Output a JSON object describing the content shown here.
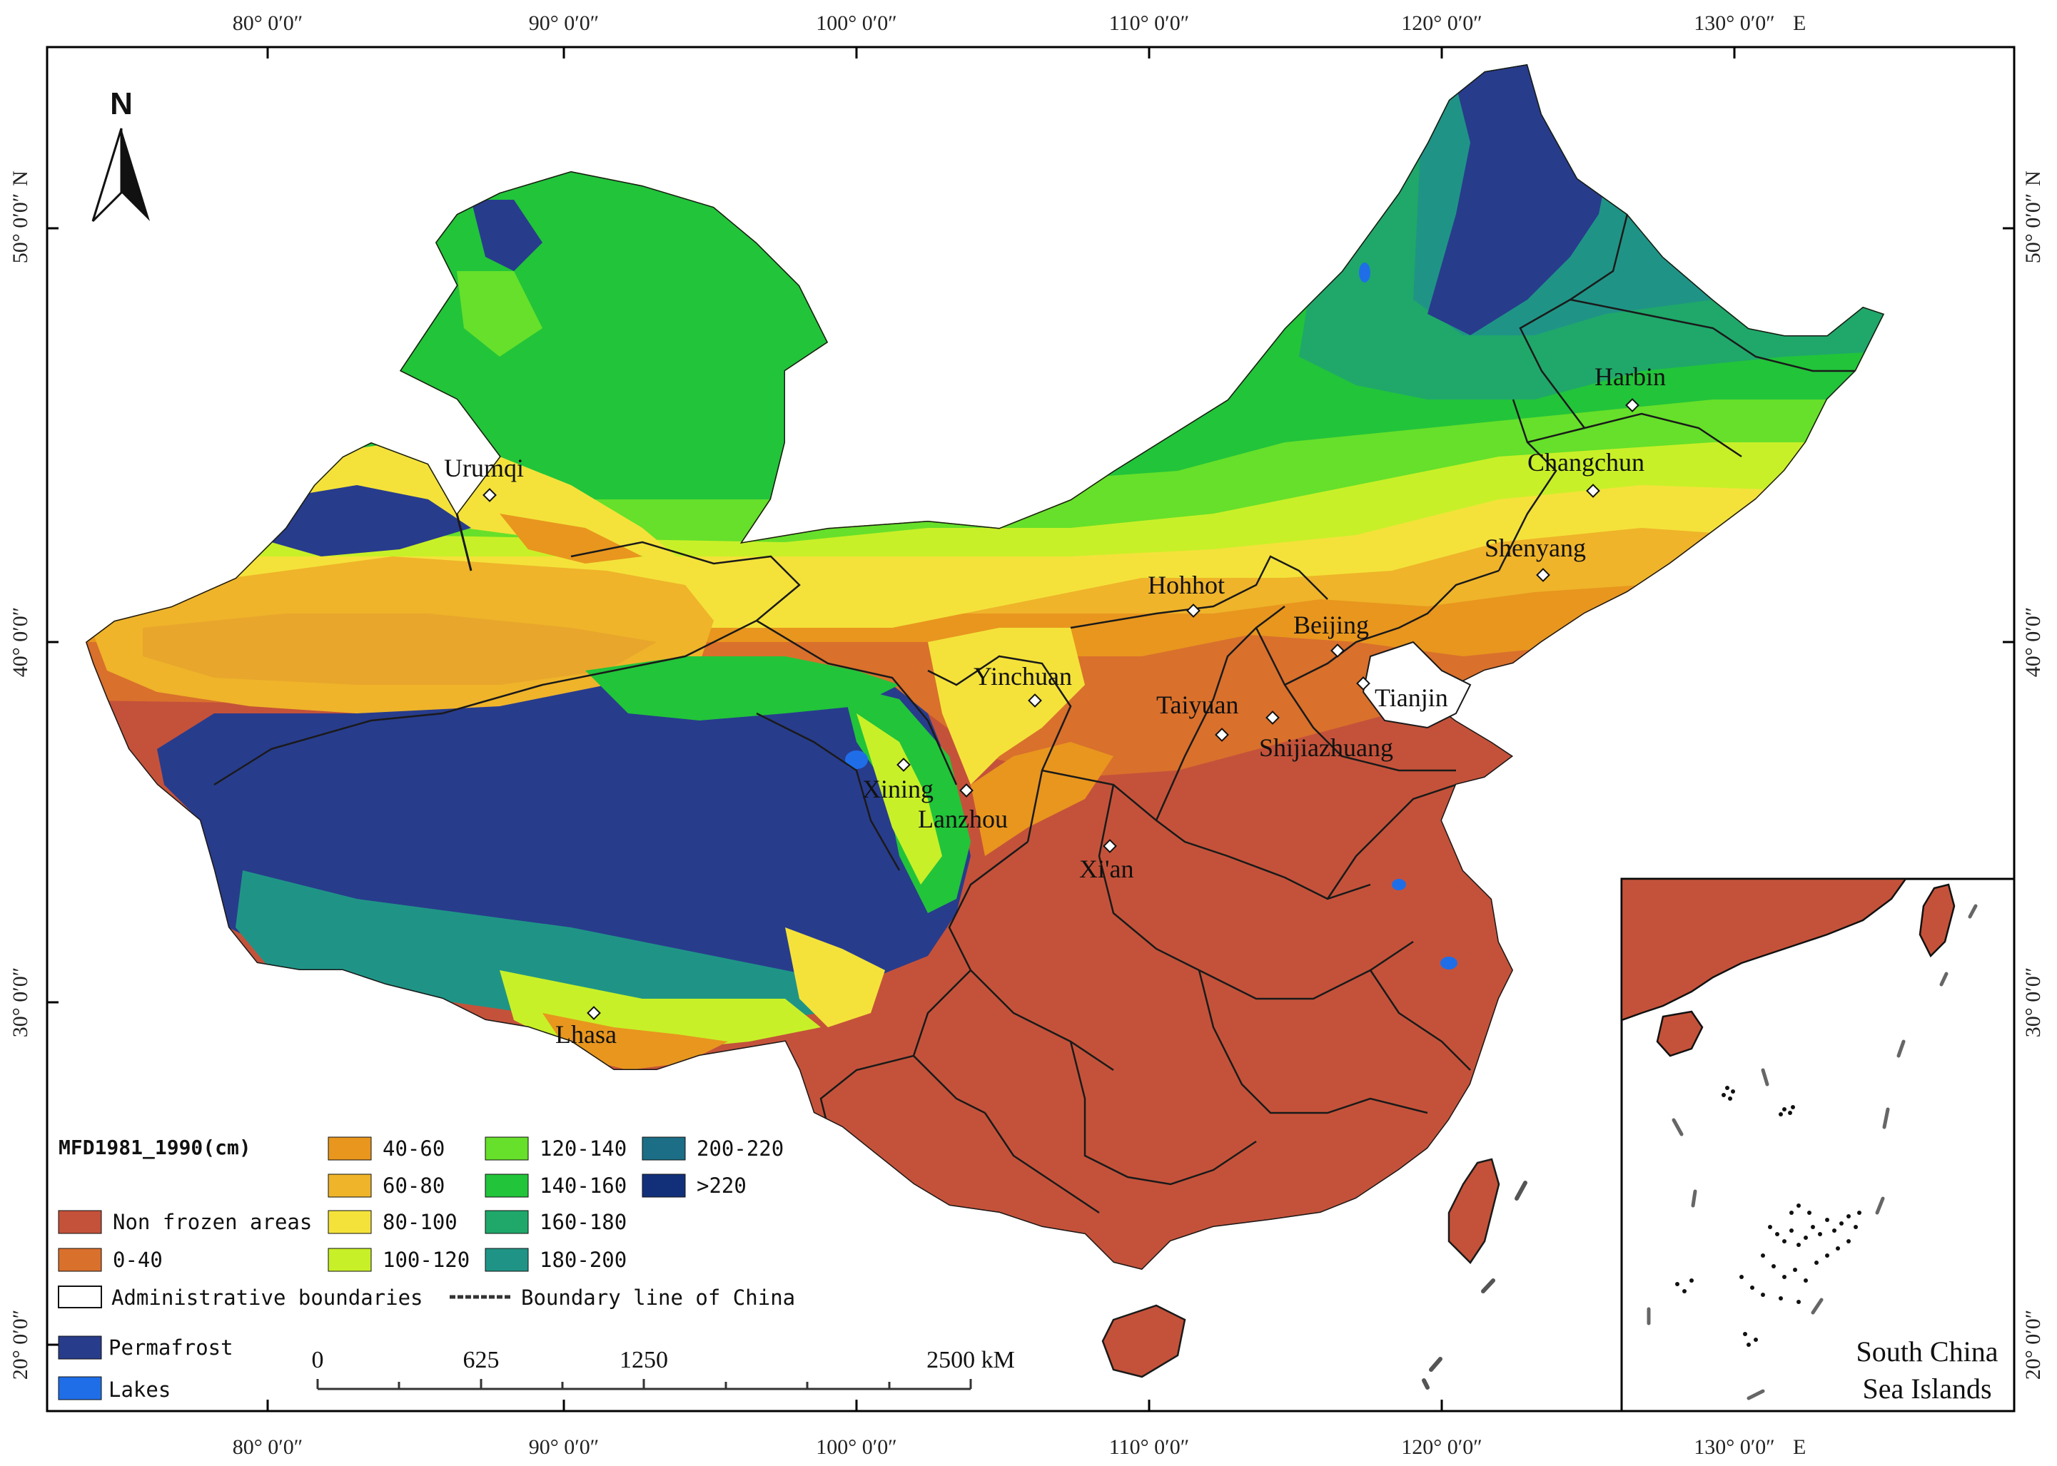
{
  "map": {
    "lon_labels": [
      "80° 0′0″",
      "90° 0′0″",
      "100° 0′0″",
      "110° 0′0″",
      "120° 0′0″",
      "130° 0′0″"
    ],
    "lon_suffix": "E",
    "lat_labels": [
      "50° 0′0″",
      "40° 0′0″",
      "30° 0′0″",
      "20° 0′0″"
    ],
    "lat_suffix": "N",
    "north_label": "N",
    "cities": [
      {
        "name": "Urumqi"
      },
      {
        "name": "Harbin"
      },
      {
        "name": "Changchun"
      },
      {
        "name": "Shenyang"
      },
      {
        "name": "Hohhot"
      },
      {
        "name": "Beijing"
      },
      {
        "name": "Tianjin"
      },
      {
        "name": "Yinchuan"
      },
      {
        "name": "Taiyuan"
      },
      {
        "name": "Shijiazhuang"
      },
      {
        "name": "Xining"
      },
      {
        "name": "Lanzhou"
      },
      {
        "name": "Xi'an"
      },
      {
        "name": "Lhasa"
      }
    ],
    "legend": {
      "title": "MFD1981_1990(cm)",
      "classes": [
        {
          "label": "Non frozen areas",
          "color": "#c4523a"
        },
        {
          "label": "0-40",
          "color": "#d9702c"
        },
        {
          "label": "40-60",
          "color": "#e8961e"
        },
        {
          "label": "60-80",
          "color": "#efb42a"
        },
        {
          "label": "80-100",
          "color": "#f4e23a"
        },
        {
          "label": "100-120",
          "color": "#c8f028"
        },
        {
          "label": "120-140",
          "color": "#66e02a"
        },
        {
          "label": "140-160",
          "color": "#22c43a"
        },
        {
          "label": "160-180",
          "color": "#1fa86a"
        },
        {
          "label": "180-200",
          "color": "#1f9486"
        },
        {
          "label": "200-220",
          "color": "#1b6e86"
        },
        {
          "label": ">220",
          "color": "#12307a"
        }
      ],
      "admin_label": "Administrative boundaries",
      "boundary_label": "Boundary line of China",
      "permafrost_label": "Permafrost",
      "permafrost_color": "#283c8c",
      "lakes_label": "Lakes",
      "lakes_color": "#1f6ee8"
    },
    "scale_bar": {
      "labels": [
        "0",
        "625",
        "1250",
        "2500 kM"
      ]
    },
    "inset": {
      "line1": "South China",
      "line2": "Sea Islands"
    }
  }
}
